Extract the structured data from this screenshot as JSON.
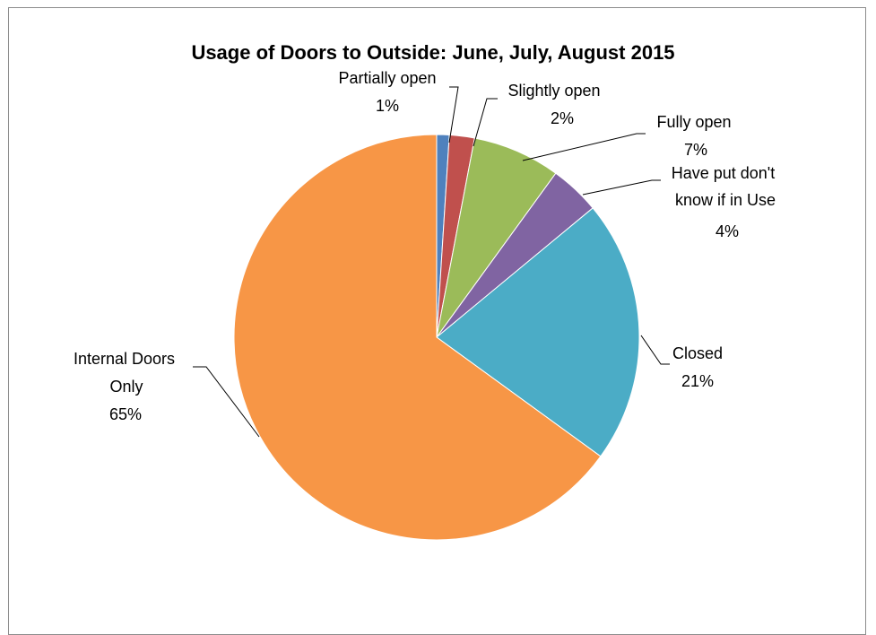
{
  "chart_data": {
    "type": "pie",
    "title": "Usage of Doors to Outside: June, July, August 2015",
    "start_angle_deg": 0,
    "direction": "clockwise",
    "legend": "none",
    "slices": [
      {
        "label": "Partially open",
        "value": 1,
        "value_label": "1%",
        "color": "#4F81BD"
      },
      {
        "label": "Slightly open",
        "value": 2,
        "value_label": "2%",
        "color": "#C0504D"
      },
      {
        "label": "Fully open",
        "value": 7,
        "value_label": "7%",
        "color": "#9BBB59"
      },
      {
        "label": "Have put don't know if in Use",
        "value": 4,
        "value_label": "4%",
        "color": "#8064A2"
      },
      {
        "label": "Closed",
        "value": 21,
        "value_label": "21%",
        "color": "#4BACC6"
      },
      {
        "label": "Internal Doors Only",
        "value": 65,
        "value_label": "65%",
        "color": "#F79646"
      }
    ]
  }
}
